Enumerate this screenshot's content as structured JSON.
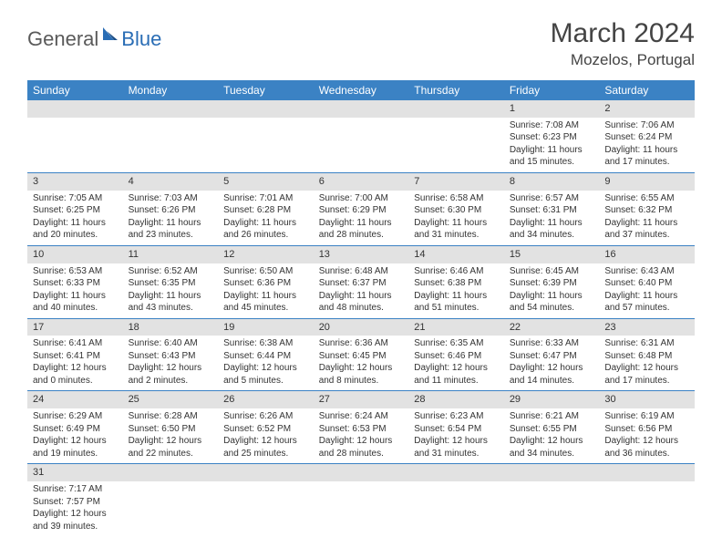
{
  "brand": {
    "part1": "General",
    "part2": "Blue"
  },
  "title": "March 2024",
  "location": "Mozelos, Portugal",
  "colors": {
    "header_bg": "#3b82c4",
    "header_text": "#ffffff",
    "daynum_bg": "#e2e2e2",
    "border": "#3b82c4",
    "brand_gray": "#5a5a5a",
    "brand_blue": "#2a6db5"
  },
  "weekdays": [
    "Sunday",
    "Monday",
    "Tuesday",
    "Wednesday",
    "Thursday",
    "Friday",
    "Saturday"
  ],
  "weeks": [
    [
      {
        "n": "",
        "lines": []
      },
      {
        "n": "",
        "lines": []
      },
      {
        "n": "",
        "lines": []
      },
      {
        "n": "",
        "lines": []
      },
      {
        "n": "",
        "lines": []
      },
      {
        "n": "1",
        "lines": [
          "Sunrise: 7:08 AM",
          "Sunset: 6:23 PM",
          "Daylight: 11 hours",
          "and 15 minutes."
        ]
      },
      {
        "n": "2",
        "lines": [
          "Sunrise: 7:06 AM",
          "Sunset: 6:24 PM",
          "Daylight: 11 hours",
          "and 17 minutes."
        ]
      }
    ],
    [
      {
        "n": "3",
        "lines": [
          "Sunrise: 7:05 AM",
          "Sunset: 6:25 PM",
          "Daylight: 11 hours",
          "and 20 minutes."
        ]
      },
      {
        "n": "4",
        "lines": [
          "Sunrise: 7:03 AM",
          "Sunset: 6:26 PM",
          "Daylight: 11 hours",
          "and 23 minutes."
        ]
      },
      {
        "n": "5",
        "lines": [
          "Sunrise: 7:01 AM",
          "Sunset: 6:28 PM",
          "Daylight: 11 hours",
          "and 26 minutes."
        ]
      },
      {
        "n": "6",
        "lines": [
          "Sunrise: 7:00 AM",
          "Sunset: 6:29 PM",
          "Daylight: 11 hours",
          "and 28 minutes."
        ]
      },
      {
        "n": "7",
        "lines": [
          "Sunrise: 6:58 AM",
          "Sunset: 6:30 PM",
          "Daylight: 11 hours",
          "and 31 minutes."
        ]
      },
      {
        "n": "8",
        "lines": [
          "Sunrise: 6:57 AM",
          "Sunset: 6:31 PM",
          "Daylight: 11 hours",
          "and 34 minutes."
        ]
      },
      {
        "n": "9",
        "lines": [
          "Sunrise: 6:55 AM",
          "Sunset: 6:32 PM",
          "Daylight: 11 hours",
          "and 37 minutes."
        ]
      }
    ],
    [
      {
        "n": "10",
        "lines": [
          "Sunrise: 6:53 AM",
          "Sunset: 6:33 PM",
          "Daylight: 11 hours",
          "and 40 minutes."
        ]
      },
      {
        "n": "11",
        "lines": [
          "Sunrise: 6:52 AM",
          "Sunset: 6:35 PM",
          "Daylight: 11 hours",
          "and 43 minutes."
        ]
      },
      {
        "n": "12",
        "lines": [
          "Sunrise: 6:50 AM",
          "Sunset: 6:36 PM",
          "Daylight: 11 hours",
          "and 45 minutes."
        ]
      },
      {
        "n": "13",
        "lines": [
          "Sunrise: 6:48 AM",
          "Sunset: 6:37 PM",
          "Daylight: 11 hours",
          "and 48 minutes."
        ]
      },
      {
        "n": "14",
        "lines": [
          "Sunrise: 6:46 AM",
          "Sunset: 6:38 PM",
          "Daylight: 11 hours",
          "and 51 minutes."
        ]
      },
      {
        "n": "15",
        "lines": [
          "Sunrise: 6:45 AM",
          "Sunset: 6:39 PM",
          "Daylight: 11 hours",
          "and 54 minutes."
        ]
      },
      {
        "n": "16",
        "lines": [
          "Sunrise: 6:43 AM",
          "Sunset: 6:40 PM",
          "Daylight: 11 hours",
          "and 57 minutes."
        ]
      }
    ],
    [
      {
        "n": "17",
        "lines": [
          "Sunrise: 6:41 AM",
          "Sunset: 6:41 PM",
          "Daylight: 12 hours",
          "and 0 minutes."
        ]
      },
      {
        "n": "18",
        "lines": [
          "Sunrise: 6:40 AM",
          "Sunset: 6:43 PM",
          "Daylight: 12 hours",
          "and 2 minutes."
        ]
      },
      {
        "n": "19",
        "lines": [
          "Sunrise: 6:38 AM",
          "Sunset: 6:44 PM",
          "Daylight: 12 hours",
          "and 5 minutes."
        ]
      },
      {
        "n": "20",
        "lines": [
          "Sunrise: 6:36 AM",
          "Sunset: 6:45 PM",
          "Daylight: 12 hours",
          "and 8 minutes."
        ]
      },
      {
        "n": "21",
        "lines": [
          "Sunrise: 6:35 AM",
          "Sunset: 6:46 PM",
          "Daylight: 12 hours",
          "and 11 minutes."
        ]
      },
      {
        "n": "22",
        "lines": [
          "Sunrise: 6:33 AM",
          "Sunset: 6:47 PM",
          "Daylight: 12 hours",
          "and 14 minutes."
        ]
      },
      {
        "n": "23",
        "lines": [
          "Sunrise: 6:31 AM",
          "Sunset: 6:48 PM",
          "Daylight: 12 hours",
          "and 17 minutes."
        ]
      }
    ],
    [
      {
        "n": "24",
        "lines": [
          "Sunrise: 6:29 AM",
          "Sunset: 6:49 PM",
          "Daylight: 12 hours",
          "and 19 minutes."
        ]
      },
      {
        "n": "25",
        "lines": [
          "Sunrise: 6:28 AM",
          "Sunset: 6:50 PM",
          "Daylight: 12 hours",
          "and 22 minutes."
        ]
      },
      {
        "n": "26",
        "lines": [
          "Sunrise: 6:26 AM",
          "Sunset: 6:52 PM",
          "Daylight: 12 hours",
          "and 25 minutes."
        ]
      },
      {
        "n": "27",
        "lines": [
          "Sunrise: 6:24 AM",
          "Sunset: 6:53 PM",
          "Daylight: 12 hours",
          "and 28 minutes."
        ]
      },
      {
        "n": "28",
        "lines": [
          "Sunrise: 6:23 AM",
          "Sunset: 6:54 PM",
          "Daylight: 12 hours",
          "and 31 minutes."
        ]
      },
      {
        "n": "29",
        "lines": [
          "Sunrise: 6:21 AM",
          "Sunset: 6:55 PM",
          "Daylight: 12 hours",
          "and 34 minutes."
        ]
      },
      {
        "n": "30",
        "lines": [
          "Sunrise: 6:19 AM",
          "Sunset: 6:56 PM",
          "Daylight: 12 hours",
          "and 36 minutes."
        ]
      }
    ],
    [
      {
        "n": "31",
        "lines": [
          "Sunrise: 7:17 AM",
          "Sunset: 7:57 PM",
          "Daylight: 12 hours",
          "and 39 minutes."
        ]
      },
      {
        "n": "",
        "lines": []
      },
      {
        "n": "",
        "lines": []
      },
      {
        "n": "",
        "lines": []
      },
      {
        "n": "",
        "lines": []
      },
      {
        "n": "",
        "lines": []
      },
      {
        "n": "",
        "lines": []
      }
    ]
  ]
}
